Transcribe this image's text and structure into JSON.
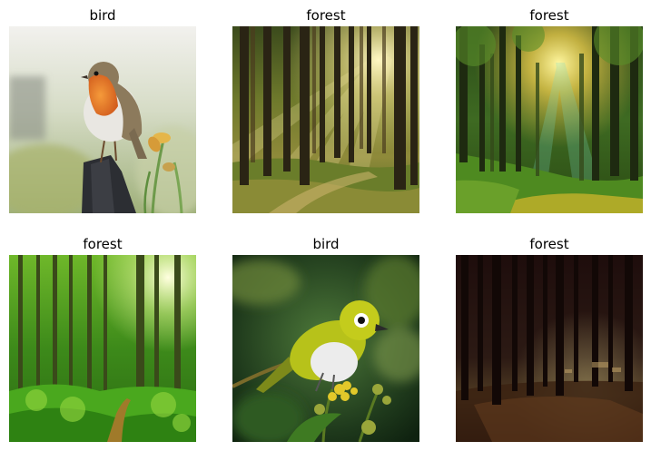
{
  "images": [
    {
      "label": "bird",
      "scene": "robin"
    },
    {
      "label": "forest",
      "scene": "sunbeam-forest"
    },
    {
      "label": "forest",
      "scene": "sunlit-green-forest"
    },
    {
      "label": "forest",
      "scene": "bright-green-forest"
    },
    {
      "label": "bird",
      "scene": "yellow-bird"
    },
    {
      "label": "forest",
      "scene": "dark-forest"
    }
  ]
}
